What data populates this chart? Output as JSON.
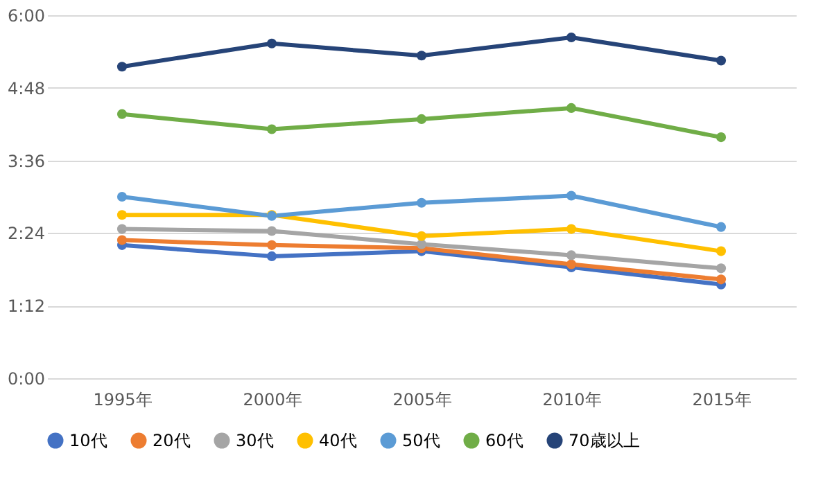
{
  "chart_data": {
    "type": "line",
    "categories": [
      "1995年",
      "2000年",
      "2005年",
      "2010年",
      "2015年"
    ],
    "ylim": [
      0,
      360
    ],
    "yticks": [
      {
        "value": 0,
        "label": "0:00"
      },
      {
        "value": 72,
        "label": "1:12"
      },
      {
        "value": 144,
        "label": "2:24"
      },
      {
        "value": 216,
        "label": "3:36"
      },
      {
        "value": 288,
        "label": "4:48"
      },
      {
        "value": 360,
        "label": "6:00"
      }
    ],
    "grid": "y",
    "legend": "bottom",
    "marker": "circle",
    "line_style": "solid",
    "series": [
      {
        "name": "10代",
        "color": "#4472c4",
        "values": [
          132,
          121,
          126,
          110,
          93
        ]
      },
      {
        "name": "20代",
        "color": "#ed7d31",
        "values": [
          137,
          132,
          129,
          113,
          98
        ]
      },
      {
        "name": "30代",
        "color": "#a5a5a5",
        "values": [
          148,
          146,
          133,
          122,
          109
        ]
      },
      {
        "name": "40代",
        "color": "#ffc000",
        "values": [
          162,
          162,
          141,
          148,
          126
        ]
      },
      {
        "name": "50代",
        "color": "#5b9bd5",
        "values": [
          180,
          161,
          174,
          181,
          150
        ]
      },
      {
        "name": "60代",
        "color": "#70ad47",
        "values": [
          262,
          247,
          257,
          268,
          239
        ]
      },
      {
        "name": "70歳以上",
        "color": "#264478",
        "values": [
          309,
          332,
          320,
          338,
          315
        ]
      }
    ]
  }
}
